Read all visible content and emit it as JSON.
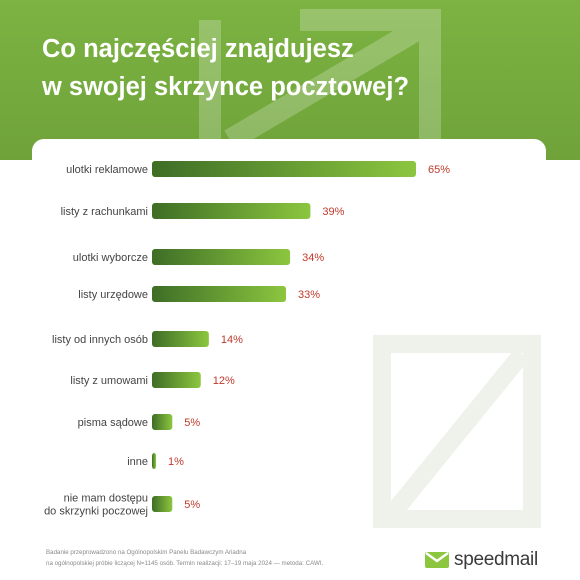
{
  "title": {
    "line1": "Co najczęściej znajdujesz",
    "line2": "w swojej skrzynce pocztowej?"
  },
  "colors": {
    "header_green": "#72a83a",
    "bar_dark": "#3e6d26",
    "bar_light": "#8cc63f",
    "value_red": "#c0392b",
    "label_gray": "#444444"
  },
  "chart_data": {
    "type": "bar",
    "orientation": "horizontal",
    "title": "Co najczęściej znajdujesz w swojej skrzynce pocztowej?",
    "categories": [
      [
        "ulotki reklamowe"
      ],
      [
        "listy z rachunkami"
      ],
      [
        "ulotki wyborcze"
      ],
      [
        "listy urzędowe"
      ],
      [
        "listy od innych osób"
      ],
      [
        "listy z umowami"
      ],
      [
        "pisma sądowe"
      ],
      [
        "inne"
      ],
      [
        "nie mam dostępu",
        "do skrzynki poczowej"
      ]
    ],
    "values": [
      65,
      39,
      34,
      33,
      14,
      12,
      5,
      1,
      5
    ],
    "value_labels": [
      "65%",
      "39%",
      "34%",
      "33%",
      "14%",
      "12%",
      "5%",
      "1%",
      "5%"
    ],
    "xlim": [
      0,
      65
    ],
    "unit": "%",
    "grid": false,
    "legend": "none"
  },
  "footer": {
    "note_line1": "Badanie przeprowadzono na Ogólnopolskim Panelu Badawczym Ariadna",
    "note_line2": "na ogólnopolskiej próbie liczącej N=1145 osób. Termin realizacji: 17–19 maja 2024 — metoda: CAWI.",
    "logo_text": "speedmail"
  },
  "icons": [
    "envelope-arrow-icon",
    "speedmail-logo-icon"
  ]
}
